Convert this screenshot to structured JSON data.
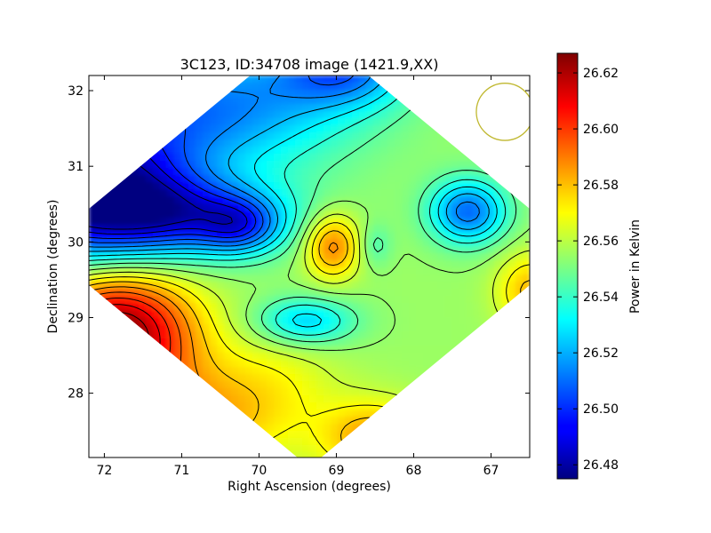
{
  "chart_data": {
    "type": "heatmap",
    "title": "3C123, ID:34708 image (1421.9,XX)",
    "xlabel": "Right Ascension (degrees)",
    "ylabel": "Declination (degrees)",
    "xlim": [
      72.2,
      66.5
    ],
    "ylim": [
      27.15,
      32.2
    ],
    "x_ticks": [
      72,
      71,
      70,
      69,
      68,
      67
    ],
    "x_tick_labels": [
      "72",
      "71",
      "70",
      "69",
      "68",
      "67"
    ],
    "y_ticks": [
      28,
      29,
      30,
      31,
      32
    ],
    "y_tick_labels": [
      "28",
      "29",
      "30",
      "31",
      "32"
    ],
    "colormap": "jet",
    "contours": true,
    "colorbar": {
      "label": "Power in Kelvin",
      "range": [
        26.475,
        26.627
      ],
      "ticks": [
        26.48,
        26.5,
        26.52,
        26.54,
        26.56,
        26.58,
        26.6,
        26.62
      ],
      "tick_labels": [
        "26.48",
        "26.50",
        "26.52",
        "26.54",
        "26.56",
        "26.58",
        "26.60",
        "26.62"
      ]
    },
    "field": {
      "base": 26.555,
      "features": [
        {
          "ra": 71.85,
          "dec": 28.8,
          "amp": 0.075,
          "sra": 0.7,
          "sdec": 0.6
        },
        {
          "ra": 72.2,
          "dec": 30.7,
          "amp": -0.08,
          "sra": 0.9,
          "sdec": 0.7
        },
        {
          "ra": 70.9,
          "dec": 30.35,
          "amp": -0.045,
          "sra": 0.9,
          "sdec": 0.35
        },
        {
          "ra": 70.25,
          "dec": 30.2,
          "amp": -0.03,
          "sra": 0.35,
          "sdec": 0.25
        },
        {
          "ra": 70.5,
          "dec": 31.8,
          "amp": -0.04,
          "sra": 1.2,
          "sdec": 0.6
        },
        {
          "ra": 68.9,
          "dec": 32.3,
          "amp": -0.04,
          "sra": 0.6,
          "sdec": 0.35
        },
        {
          "ra": 67.3,
          "dec": 30.4,
          "amp": -0.045,
          "sra": 0.35,
          "sdec": 0.3
        },
        {
          "ra": 69.05,
          "dec": 29.95,
          "amp": 0.035,
          "sra": 0.25,
          "sdec": 0.3
        },
        {
          "ra": 69.4,
          "dec": 28.95,
          "amp": -0.03,
          "sra": 0.45,
          "sdec": 0.22
        },
        {
          "ra": 68.5,
          "dec": 29.95,
          "amp": -0.012,
          "sra": 0.15,
          "sdec": 0.2
        },
        {
          "ra": 68.5,
          "dec": 27.4,
          "amp": 0.03,
          "sra": 0.5,
          "sdec": 0.35
        },
        {
          "ra": 66.5,
          "dec": 29.35,
          "amp": 0.025,
          "sra": 0.3,
          "sdec": 0.35
        },
        {
          "ra": 71.0,
          "dec": 27.6,
          "amp": 0.03,
          "sra": 0.8,
          "sdec": 0.5
        },
        {
          "ra": 69.8,
          "dec": 28.1,
          "amp": 0.012,
          "sra": 0.6,
          "sdec": 0.5
        }
      ]
    },
    "beam": {
      "ra": 66.82,
      "dec": 31.72,
      "radius_deg": 0.37,
      "color": "#c0b830"
    }
  }
}
